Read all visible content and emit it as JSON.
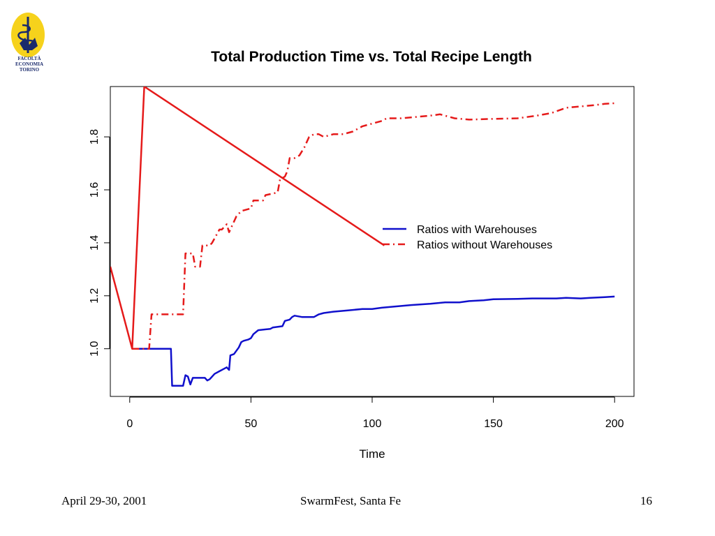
{
  "logo": {
    "lines": [
      "FACOLTÀ",
      "ECONOMIA",
      "TORINO"
    ],
    "color": "#f6d21c"
  },
  "footer": {
    "date": "April 29-30, 2001",
    "event": "SwarmFest, Santa Fe",
    "page": "16"
  },
  "chart_data": {
    "type": "line",
    "title": "Total Production Time vs. Total Recipe Length",
    "xlabel": "Time",
    "ylabel": "",
    "xlim": [
      -8,
      208
    ],
    "ylim": [
      0.82,
      1.99
    ],
    "xticks": [
      0,
      50,
      100,
      150,
      200
    ],
    "xtick_labels": [
      "0",
      "50",
      "100",
      "150",
      "200"
    ],
    "yticks": [
      1.0,
      1.2,
      1.4,
      1.6,
      1.8
    ],
    "ytick_labels": [
      "1.0",
      "1.2",
      "1.4",
      "1.6",
      "1.8"
    ],
    "grid": false,
    "legend_placement": "center-right",
    "series": [
      {
        "name": "Ratios with Warehouses",
        "color": "#1010cc",
        "style": "solid",
        "x": [
          1,
          17,
          17.5,
          22,
          23,
          24,
          25,
          26,
          27,
          31,
          32,
          33,
          35,
          37,
          39,
          40,
          41,
          41.5,
          43,
          45,
          46,
          47,
          49,
          50,
          51,
          53,
          58,
          59,
          63,
          64,
          66,
          67,
          68,
          71,
          72,
          76,
          78,
          80,
          84,
          90,
          96,
          100,
          104,
          110,
          116,
          124,
          130,
          136,
          140,
          146,
          150,
          160,
          166,
          170,
          176,
          180,
          186,
          190,
          196,
          200
        ],
        "y": [
          1.0,
          1.0,
          0.86,
          0.86,
          0.9,
          0.895,
          0.865,
          0.89,
          0.89,
          0.89,
          0.88,
          0.885,
          0.905,
          0.915,
          0.925,
          0.93,
          0.92,
          0.975,
          0.98,
          1.005,
          1.025,
          1.03,
          1.035,
          1.04,
          1.055,
          1.07,
          1.075,
          1.08,
          1.085,
          1.105,
          1.11,
          1.12,
          1.125,
          1.12,
          1.12,
          1.12,
          1.13,
          1.135,
          1.14,
          1.145,
          1.15,
          1.15,
          1.155,
          1.16,
          1.165,
          1.17,
          1.175,
          1.175,
          1.18,
          1.183,
          1.187,
          1.188,
          1.19,
          1.19,
          1.19,
          1.192,
          1.19,
          1.192,
          1.195,
          1.197
        ]
      },
      {
        "name": "Ratios without Warehouses",
        "color": "#e51a1a",
        "style": "dashdot",
        "x": [
          1,
          8,
          9,
          22,
          23,
          26,
          27,
          29,
          30,
          33,
          34,
          37,
          38,
          40,
          41,
          44,
          46,
          50,
          51,
          55,
          56,
          61,
          62,
          64,
          65,
          66,
          68,
          70,
          72,
          74,
          76,
          78,
          80,
          84,
          88,
          92,
          96,
          100,
          104,
          106,
          112,
          118,
          124,
          128,
          134,
          140,
          150,
          160,
          168,
          174,
          180,
          186,
          192,
          196,
          200
        ],
        "y": [
          1.0,
          1.0,
          1.13,
          1.13,
          1.36,
          1.36,
          1.31,
          1.31,
          1.39,
          1.39,
          1.4,
          1.45,
          1.45,
          1.47,
          1.44,
          1.5,
          1.52,
          1.53,
          1.56,
          1.56,
          1.58,
          1.59,
          1.64,
          1.65,
          1.67,
          1.72,
          1.72,
          1.73,
          1.76,
          1.8,
          1.81,
          1.81,
          1.8,
          1.81,
          1.81,
          1.82,
          1.84,
          1.85,
          1.86,
          1.87,
          1.87,
          1.875,
          1.88,
          1.885,
          1.87,
          1.865,
          1.868,
          1.87,
          1.88,
          1.89,
          1.91,
          1.915,
          1.92,
          1.925,
          1.927
        ]
      },
      {
        "name": "",
        "color": "#e51a1a",
        "style": "solid",
        "x": [
          -8,
          1,
          1,
          6,
          105
        ],
        "y": [
          1.31,
          1.0,
          1.0,
          1.99,
          1.39
        ]
      }
    ]
  }
}
